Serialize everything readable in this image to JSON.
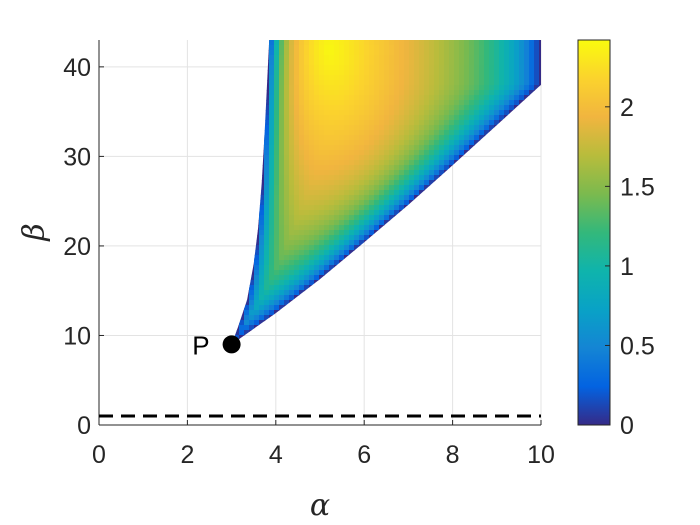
{
  "chart_data": {
    "type": "heatmap",
    "title": "",
    "xlabel": "α",
    "ylabel": "β",
    "xlim": [
      0,
      10
    ],
    "ylim": [
      0,
      43
    ],
    "x_ticks": [
      "0",
      "2",
      "4",
      "6",
      "8",
      "10"
    ],
    "x_tick_values": [
      0,
      2,
      4,
      6,
      8,
      10
    ],
    "y_ticks": [
      "0",
      "10",
      "20",
      "30",
      "40"
    ],
    "y_tick_values": [
      0,
      10,
      20,
      30,
      40
    ],
    "grid": true,
    "colormap": "parula",
    "colorbar": {
      "range": [
        0,
        2.42
      ],
      "ticks": [
        "0",
        "0.5",
        "1",
        "1.5",
        "2"
      ],
      "tick_values": [
        0,
        0.5,
        1,
        1.5,
        2
      ]
    },
    "region": {
      "vertex": [
        3,
        9
      ],
      "left_boundary": [
        [
          3,
          9
        ],
        [
          3.15,
          11
        ],
        [
          3.35,
          14
        ],
        [
          3.5,
          18
        ],
        [
          3.6,
          22
        ],
        [
          3.68,
          27
        ],
        [
          3.75,
          33
        ],
        [
          3.8,
          38
        ],
        [
          3.85,
          43
        ]
      ],
      "right_boundary": [
        [
          3,
          9
        ],
        [
          4,
          12.5
        ],
        [
          5,
          16.3
        ],
        [
          6,
          20.4
        ],
        [
          7,
          24.6
        ],
        [
          8,
          29
        ],
        [
          9,
          33.5
        ],
        [
          10,
          38
        ]
      ],
      "top_edge": [
        [
          3.85,
          43
        ],
        [
          10,
          43
        ]
      ],
      "right_edge": [
        [
          10,
          38
        ],
        [
          10,
          43
        ]
      ],
      "peak_value_location": [
        5.2,
        42
      ],
      "peak_value": 2.42
    },
    "marked_point": {
      "label": "P",
      "x": 3,
      "y": 9,
      "color": "#000000"
    },
    "reference_line": {
      "y": 1,
      "style": "dashed",
      "color": "#000000"
    }
  }
}
